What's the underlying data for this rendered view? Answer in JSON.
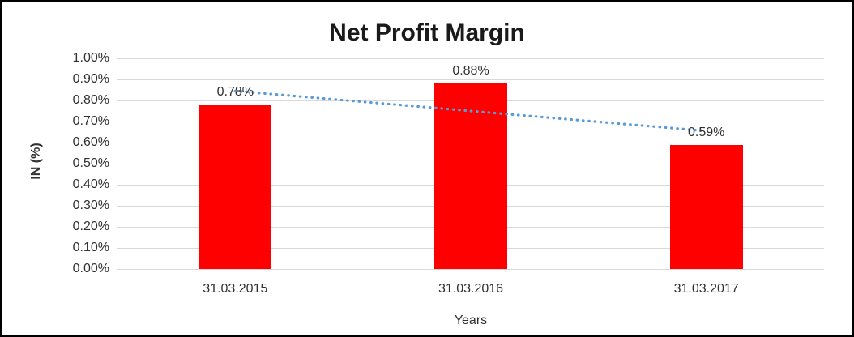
{
  "colors": {
    "bar": "#ff0000",
    "trendline": "#5b9bd5",
    "gridline": "#d9d9d9",
    "text": "#303030",
    "title_text": "#1a1a1a",
    "frame_border": "#000000",
    "background": "#ffffff"
  },
  "chart_data": {
    "type": "bar",
    "title": "Net Profit Margin",
    "xlabel": "Years",
    "ylabel": "IN (%)",
    "categories": [
      "31.03.2015",
      "31.03.2016",
      "31.03.2017"
    ],
    "values": [
      0.78,
      0.88,
      0.59
    ],
    "data_labels": [
      "0.78%",
      "0.88%",
      "0.59%"
    ],
    "yticks": [
      "1.00%",
      "0.90%",
      "0.80%",
      "0.70%",
      "0.60%",
      "0.50%",
      "0.40%",
      "0.30%",
      "0.20%",
      "0.10%",
      "0.00%"
    ],
    "ylim": [
      0,
      1.0
    ],
    "grid": true,
    "legend": "none",
    "trendline": {
      "type": "linear",
      "style": "dotted",
      "color": "#5b9bd5",
      "start_value": 0.845,
      "end_value": 0.655
    }
  }
}
